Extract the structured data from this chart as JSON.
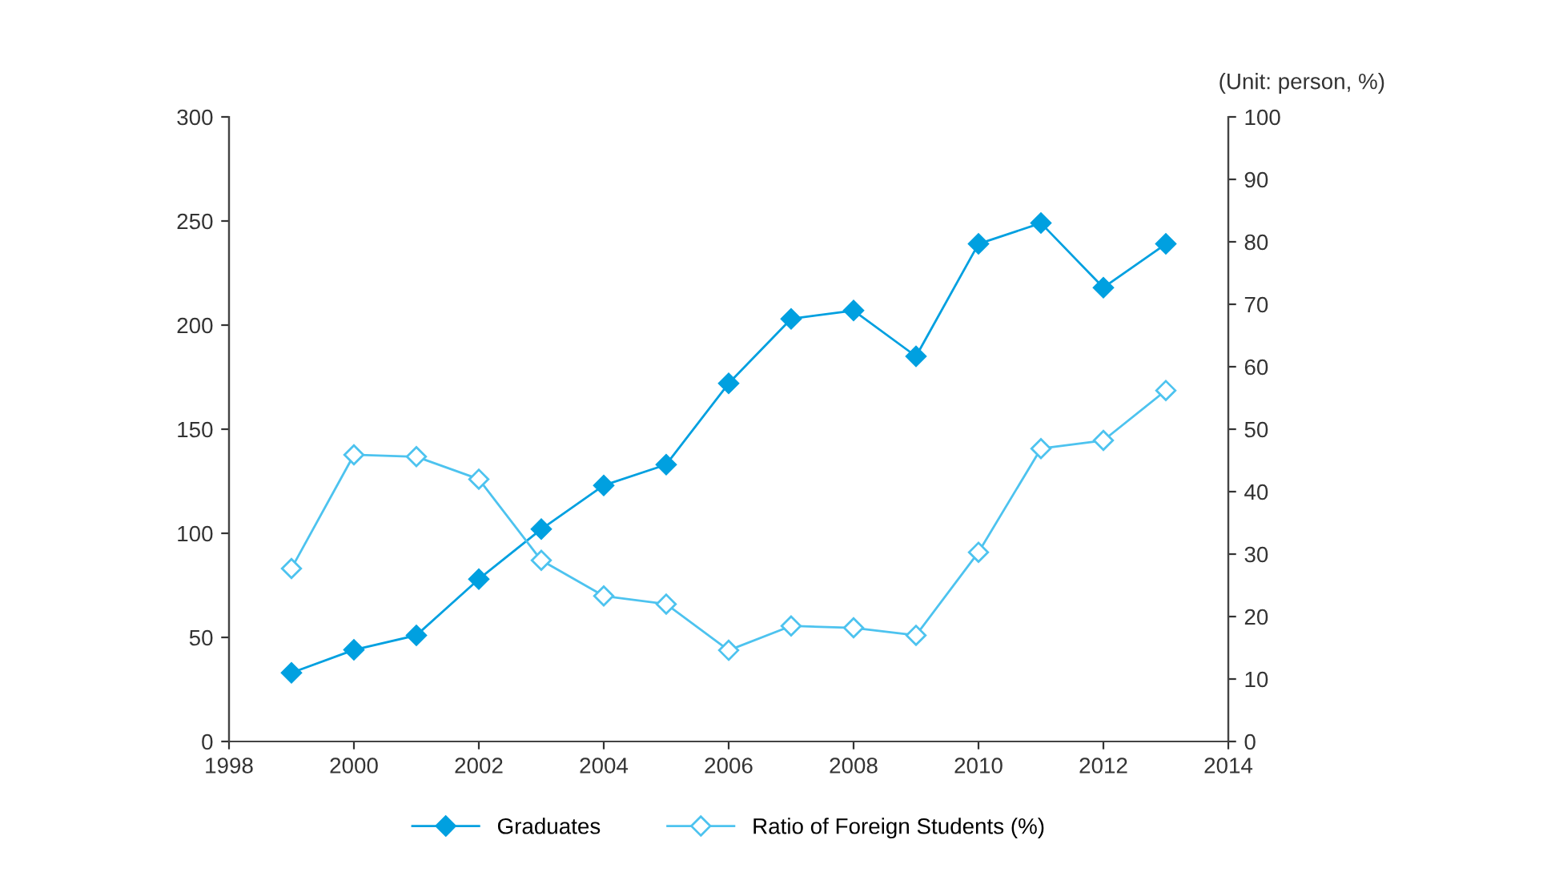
{
  "chart_data": {
    "type": "line",
    "x": [
      1999,
      2000,
      2001,
      2002,
      2003,
      2004,
      2005,
      2006,
      2007,
      2008,
      2009,
      2010,
      2011,
      2012,
      2013
    ],
    "series": [
      {
        "name": "Graduates",
        "color": "#00a0e0",
        "values": [
          33,
          44,
          51,
          78,
          102,
          123,
          133,
          172,
          203,
          207,
          185,
          239,
          249,
          218,
          239
        ]
      },
      {
        "name": "Ratio of Foreign Students (%)",
        "color": "#4dc3ef",
        "axis": "y2",
        "values": [
          27.7,
          45.9,
          45.6,
          42,
          29,
          23.3,
          22,
          14.6,
          18.5,
          18.2,
          17,
          30.3,
          46.9,
          48.2,
          56.2
        ]
      }
    ],
    "xlim": [
      1998,
      2014
    ],
    "xticks": [
      1998,
      2000,
      2002,
      2004,
      2006,
      2008,
      2010,
      2012,
      2014
    ],
    "ylim": [
      0,
      300
    ],
    "yticks": [
      0,
      50,
      100,
      150,
      200,
      250,
      300
    ],
    "y2lim": [
      0,
      100
    ],
    "y2ticks": [
      0,
      10,
      20,
      30,
      40,
      50,
      60,
      70,
      80,
      90,
      100
    ],
    "annotations": [
      "(Unit: person, %)"
    ],
    "marker": "diamond",
    "line_style": "solid",
    "grid": false,
    "legend": "bottom"
  }
}
